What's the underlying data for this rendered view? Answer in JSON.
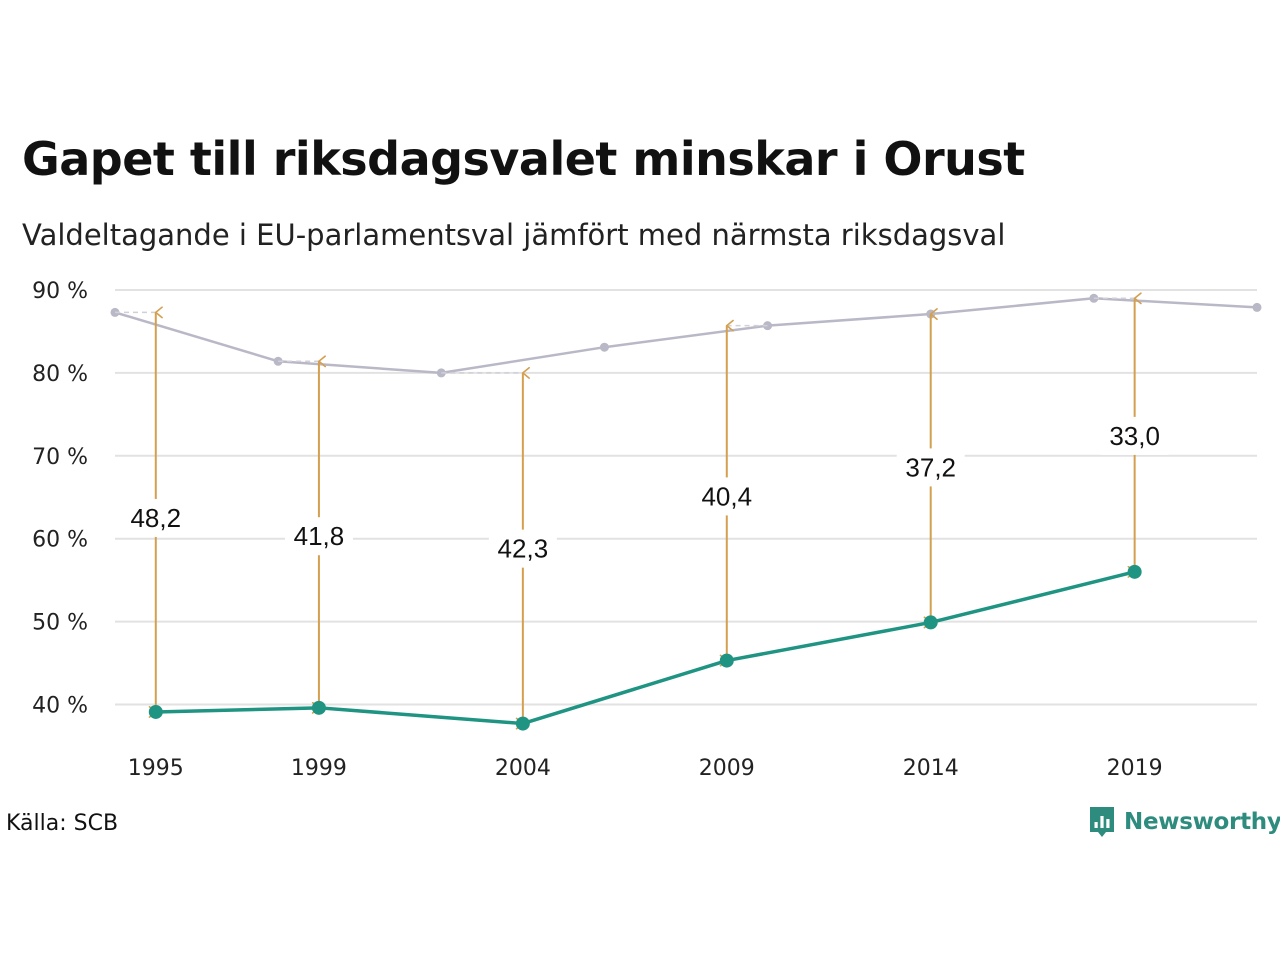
{
  "title": "Gapet till riksdagsvalet minskar i Orust",
  "subtitle": "Valdeltagande i EU-parlamentsval jämfört med närmsta riksdagsval",
  "source": "Källa: SCB",
  "brand": {
    "name": "Newsworthy",
    "icon": "newsworthy-bar-chart-icon"
  },
  "colors": {
    "eu": "#1f9483",
    "riksdag": "#b9b8c6",
    "gap": "#d4a050",
    "grid": "#e2e2e2"
  },
  "chart_data": {
    "type": "line",
    "title": "Gapet till riksdagsvalet minskar i Orust",
    "subtitle": "Valdeltagande i EU-parlamentsval jämfört med närmsta riksdagsval",
    "xlabel": "",
    "ylabel": "",
    "ylim": [
      35,
      90
    ],
    "xlim": [
      1993,
      2022.5
    ],
    "grid": true,
    "y_ticks": [
      {
        "value": 90,
        "label": "90 %"
      },
      {
        "value": 80,
        "label": "80 %"
      },
      {
        "value": 70,
        "label": "70 %"
      },
      {
        "value": 60,
        "label": "60 %"
      },
      {
        "value": 50,
        "label": "50 %"
      },
      {
        "value": 40,
        "label": "40 %"
      }
    ],
    "x_ticks": [
      {
        "value": 1995,
        "label": "1995"
      },
      {
        "value": 1999,
        "label": "1999"
      },
      {
        "value": 2004,
        "label": "2004"
      },
      {
        "value": 2009,
        "label": "2009"
      },
      {
        "value": 2014,
        "label": "2014"
      },
      {
        "value": 2019,
        "label": "2019"
      }
    ],
    "series": [
      {
        "x": [
          1994,
          1998,
          2002,
          2006,
          2010,
          2014,
          2018,
          2022
        ],
        "values": [
          87.3,
          81.4,
          80.0,
          83.1,
          85.7,
          87.1,
          89.0,
          87.9
        ]
      },
      {
        "x": [
          1995,
          1999,
          2004,
          2009,
          2014,
          2019
        ],
        "values": [
          39.1,
          39.6,
          37.7,
          45.3,
          49.9,
          56.0
        ]
      }
    ],
    "gaps": [
      {
        "x": 1995,
        "top": 87.3,
        "bottom": 39.1,
        "label": "48,2",
        "label_at": 62.5
      },
      {
        "x": 1999,
        "top": 81.4,
        "bottom": 39.6,
        "label": "41,8",
        "label_at": 60.3
      },
      {
        "x": 2004,
        "top": 80.0,
        "bottom": 37.7,
        "label": "42,3",
        "label_at": 58.8
      },
      {
        "x": 2009,
        "top": 85.7,
        "bottom": 45.3,
        "label": "40,4",
        "label_at": 65.1
      },
      {
        "x": 2014,
        "top": 87.1,
        "bottom": 49.9,
        "label": "37,2",
        "label_at": 68.6
      },
      {
        "x": 2019,
        "top": 89.0,
        "bottom": 56.0,
        "label": "33,0",
        "label_at": 72.4
      }
    ]
  }
}
